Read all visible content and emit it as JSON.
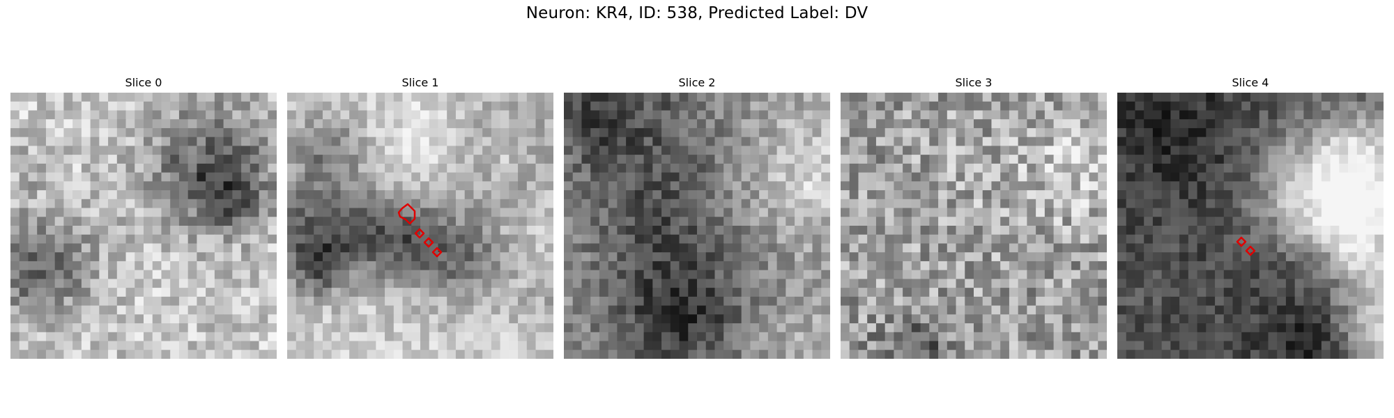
{
  "figure": {
    "title": "Neuron: KR4, ID: 538, Predicted Label: DV",
    "panels": [
      {
        "title": "Slice 0"
      },
      {
        "title": "Slice 1"
      },
      {
        "title": "Slice 2"
      },
      {
        "title": "Slice 3"
      },
      {
        "title": "Slice 4"
      }
    ],
    "colormap": "gray",
    "outline_color": "#e00000"
  }
}
